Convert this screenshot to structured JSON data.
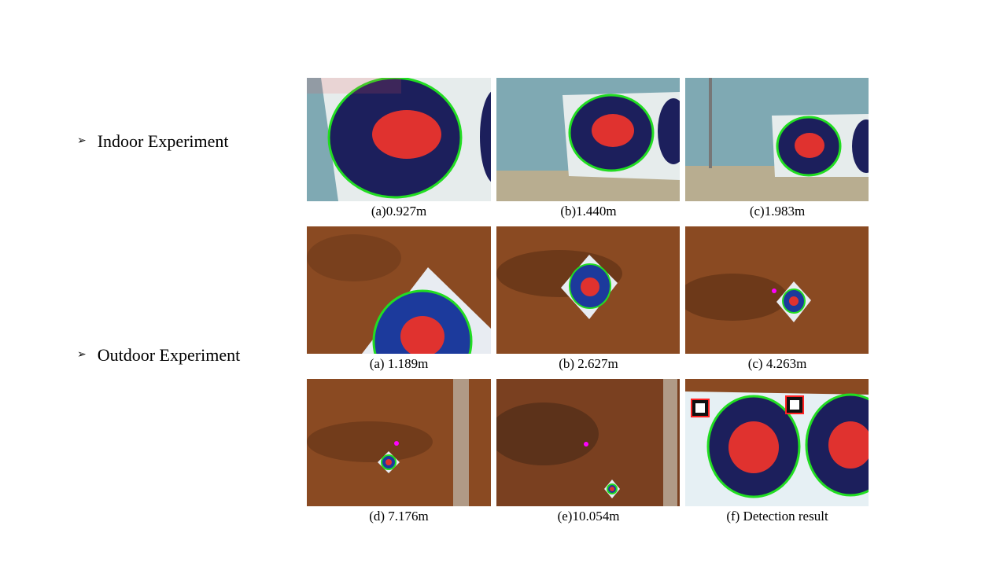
{
  "bullets": {
    "indoor": {
      "icon": "arrow-bullet-icon",
      "label": "Indoor Experiment"
    },
    "outdoor": {
      "icon": "arrow-bullet-icon",
      "label": "Outdoor Experiment"
    }
  },
  "indoor_images": [
    {
      "caption": "(a)0.927m"
    },
    {
      "caption": "(b)1.440m"
    },
    {
      "caption": "(c)1.983m"
    }
  ],
  "outdoor_images_row1": [
    {
      "caption": "(a) 1.189m"
    },
    {
      "caption": "(b) 2.627m"
    },
    {
      "caption": "(c) 4.263m"
    }
  ],
  "outdoor_images_row2": [
    {
      "caption": "(d) 7.176m"
    },
    {
      "caption": "(e)10.054m"
    },
    {
      "caption": "(f) Detection result"
    }
  ],
  "colors": {
    "wall": "#7fa9b3",
    "ground": "#8a4a22",
    "target_outer": "#1c1f5c",
    "target_inner": "#e0322f",
    "detect_green": "#22dd22"
  }
}
